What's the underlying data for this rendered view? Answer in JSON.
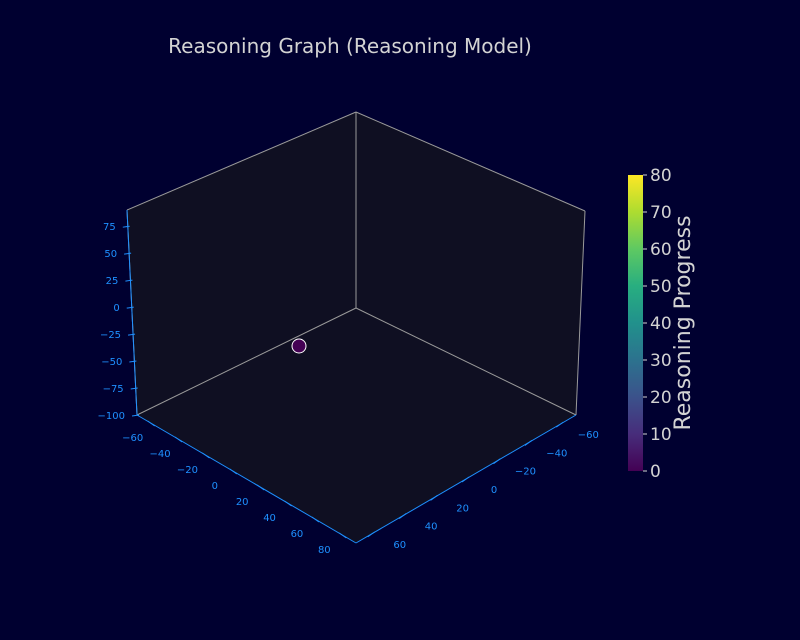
{
  "chart_data": {
    "type": "scatter",
    "title": "Reasoning Graph (Reasoning Model)",
    "xlabel": "",
    "ylabel": "",
    "zlabel": "",
    "xlim": [
      -70,
      90
    ],
    "ylim": [
      -70,
      70
    ],
    "zlim": [
      -100,
      90
    ],
    "x_ticks": [
      "−60",
      "−40",
      "−20",
      "0",
      "20",
      "40",
      "60",
      "80"
    ],
    "x_tick_values": [
      -60,
      -40,
      -20,
      0,
      20,
      40,
      60,
      80
    ],
    "y_ticks": [
      "−60",
      "−40",
      "−20",
      "0",
      "20",
      "40",
      "60"
    ],
    "y_tick_values": [
      -60,
      -40,
      -20,
      0,
      20,
      40,
      60
    ],
    "z_ticks": [
      "−100",
      "−75",
      "−50",
      "−25",
      "0",
      "25",
      "50",
      "75"
    ],
    "z_tick_values": [
      -100,
      -75,
      -50,
      -25,
      0,
      25,
      50,
      75
    ],
    "points": [
      {
        "x": 0,
        "y": 0,
        "z": 0,
        "progress": 0
      }
    ],
    "colorbar": {
      "label": "Reasoning Progress",
      "range": [
        0,
        80
      ],
      "ticks": [
        "0",
        "10",
        "20",
        "30",
        "40",
        "50",
        "60",
        "70",
        "80"
      ],
      "tick_values": [
        0,
        10,
        20,
        30,
        40,
        50,
        60,
        70,
        80
      ],
      "colormap": "viridis"
    },
    "grid": false
  },
  "colors": {
    "background": "#000030",
    "pane": "#0f0f22",
    "axis_line": "#1e90ff",
    "tick_text": "#1e90ff",
    "title_text": "#d3d3d3",
    "box_edge": "#9a9a9a",
    "point_fill": "#440154",
    "point_edge": "#ffffff"
  }
}
